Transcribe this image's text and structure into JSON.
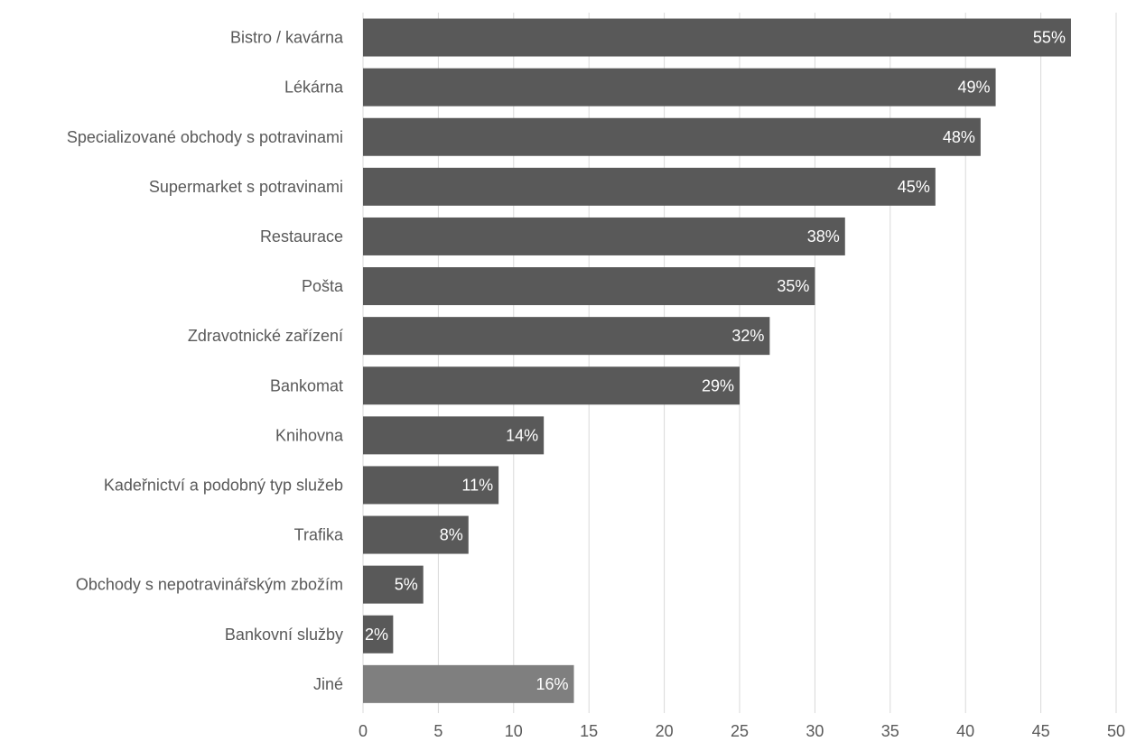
{
  "chart_data": {
    "type": "bar",
    "orientation": "horizontal",
    "title": "",
    "xlabel": "",
    "ylabel": "",
    "xlim": [
      0,
      50
    ],
    "x_ticks": [
      0,
      5,
      10,
      15,
      20,
      25,
      30,
      35,
      40,
      45,
      50
    ],
    "grid": "vertical",
    "legend": "none",
    "categories": [
      "Bistro / kavárna",
      "Lékárna",
      "Specializované obchody s potravinami",
      "Supermarket s potravinami",
      "Restaurace",
      "Pošta",
      "Zdravotnické zařízení",
      "Bankomat",
      "Knihovna",
      "Kadeřnictví a podobný typ služeb",
      "Trafika",
      "Obchody s nepotravinářským zbožím",
      "Bankovní služby",
      "Jiné"
    ],
    "values": [
      47,
      42,
      41,
      38,
      32,
      30,
      27,
      25,
      12,
      9,
      7,
      4,
      2,
      14
    ],
    "data_labels": [
      "55%",
      "49%",
      "48%",
      "45%",
      "38%",
      "35%",
      "32%",
      "29%",
      "14%",
      "11%",
      "8%",
      "5%",
      "2%",
      "16%"
    ],
    "colors": {
      "bar": "#595959",
      "bar_highlight": "#7f7f7f",
      "gridline": "#d9d9d9",
      "label_text": "#595959",
      "data_label_text": "#ffffff"
    },
    "highlight_index": 13
  }
}
